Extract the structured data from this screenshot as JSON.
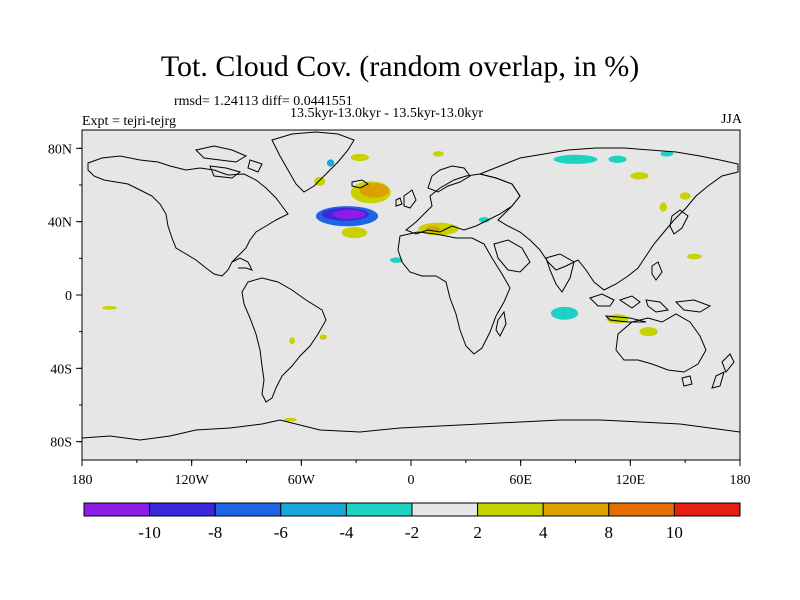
{
  "title": "Tot. Cloud Cov. (random overlap, in %)",
  "stats": "rmsd= 1.24113 diff= 0.0441551",
  "subtitle": "13.5kyr-13.0kyr - 13.5kyr-13.0kyr",
  "experiment": "Expt = tejri-tejrg",
  "season": "JJA",
  "colors": {
    "land_bg": "#e6e6e6",
    "coast": "#000000",
    "levels": [
      "#8a1ee6",
      "#3c28dc",
      "#1e64e6",
      "#19a8dc",
      "#1ed2c3",
      "#e6e6e6",
      "#c8d200",
      "#dca000",
      "#e66e00",
      "#e61e14"
    ]
  },
  "chart_data": {
    "type": "heatmap",
    "title": "Tot. Cloud Cov. (random overlap, in %)",
    "xlabel": "",
    "ylabel": "",
    "x_ticks": [
      {
        "value": -180,
        "label": "180"
      },
      {
        "value": -120,
        "label": "120W"
      },
      {
        "value": -60,
        "label": "60W"
      },
      {
        "value": 0,
        "label": "0"
      },
      {
        "value": 60,
        "label": "60E"
      },
      {
        "value": 120,
        "label": "120E"
      },
      {
        "value": 180,
        "label": "180"
      }
    ],
    "y_ticks": [
      {
        "value": 80,
        "label": "80N"
      },
      {
        "value": 40,
        "label": "40N"
      },
      {
        "value": 0,
        "label": "0"
      },
      {
        "value": -40,
        "label": "40S"
      },
      {
        "value": -80,
        "label": "80S"
      }
    ],
    "xlim": [
      -180,
      180
    ],
    "ylim": [
      -90,
      90
    ],
    "colorbar_labels": [
      "-10",
      "-8",
      "-6",
      "-4",
      "-2",
      "2",
      "4",
      "8",
      "10"
    ],
    "anomalies": [
      {
        "lon": -35,
        "lat": 43,
        "w": 34,
        "h": 11,
        "level": 2
      },
      {
        "lon": -36,
        "lat": 44,
        "w": 26,
        "h": 7,
        "level": 1
      },
      {
        "lon": -34,
        "lat": 44,
        "w": 18,
        "h": 5,
        "level": 0
      },
      {
        "lon": -22,
        "lat": 56,
        "w": 22,
        "h": 12,
        "level": 6
      },
      {
        "lon": -20,
        "lat": 57,
        "w": 16,
        "h": 8,
        "level": 7
      },
      {
        "lon": -31,
        "lat": 34,
        "w": 14,
        "h": 6,
        "level": 6
      },
      {
        "lon": -28,
        "lat": 75,
        "w": 10,
        "h": 4,
        "level": 6
      },
      {
        "lon": -50,
        "lat": 62,
        "w": 6,
        "h": 5,
        "level": 6
      },
      {
        "lon": -44,
        "lat": 72,
        "w": 4,
        "h": 4,
        "level": 3
      },
      {
        "lon": 15,
        "lat": 36,
        "w": 22,
        "h": 7,
        "level": 6
      },
      {
        "lon": 12,
        "lat": 36,
        "w": 8,
        "h": 3,
        "level": 7
      },
      {
        "lon": 40,
        "lat": 41,
        "w": 6,
        "h": 3,
        "level": 4
      },
      {
        "lon": -8,
        "lat": 19,
        "w": 7,
        "h": 3,
        "level": 4
      },
      {
        "lon": 15,
        "lat": 77,
        "w": 6,
        "h": 3,
        "level": 6
      },
      {
        "lon": 90,
        "lat": 74,
        "w": 24,
        "h": 5,
        "level": 4
      },
      {
        "lon": 113,
        "lat": 74,
        "w": 10,
        "h": 4,
        "level": 4
      },
      {
        "lon": 140,
        "lat": 77,
        "w": 7,
        "h": 3,
        "level": 4
      },
      {
        "lon": 150,
        "lat": 54,
        "w": 6,
        "h": 4,
        "level": 6
      },
      {
        "lon": 125,
        "lat": 65,
        "w": 10,
        "h": 4,
        "level": 6
      },
      {
        "lon": 138,
        "lat": 48,
        "w": 4,
        "h": 5,
        "level": 6
      },
      {
        "lon": 155,
        "lat": 21,
        "w": 8,
        "h": 3,
        "level": 6
      },
      {
        "lon": 84,
        "lat": -10,
        "w": 15,
        "h": 7,
        "level": 4
      },
      {
        "lon": 113,
        "lat": -13,
        "w": 12,
        "h": 5,
        "level": 6
      },
      {
        "lon": 130,
        "lat": -20,
        "w": 10,
        "h": 5,
        "level": 6
      },
      {
        "lon": -165,
        "lat": -7,
        "w": 8,
        "h": 2,
        "level": 6
      },
      {
        "lon": -65,
        "lat": -25,
        "w": 3,
        "h": 4,
        "level": 6
      },
      {
        "lon": -48,
        "lat": -23,
        "w": 4,
        "h": 3,
        "level": 6
      },
      {
        "lon": -66,
        "lat": -68,
        "w": 7,
        "h": 2,
        "level": 6
      }
    ]
  }
}
